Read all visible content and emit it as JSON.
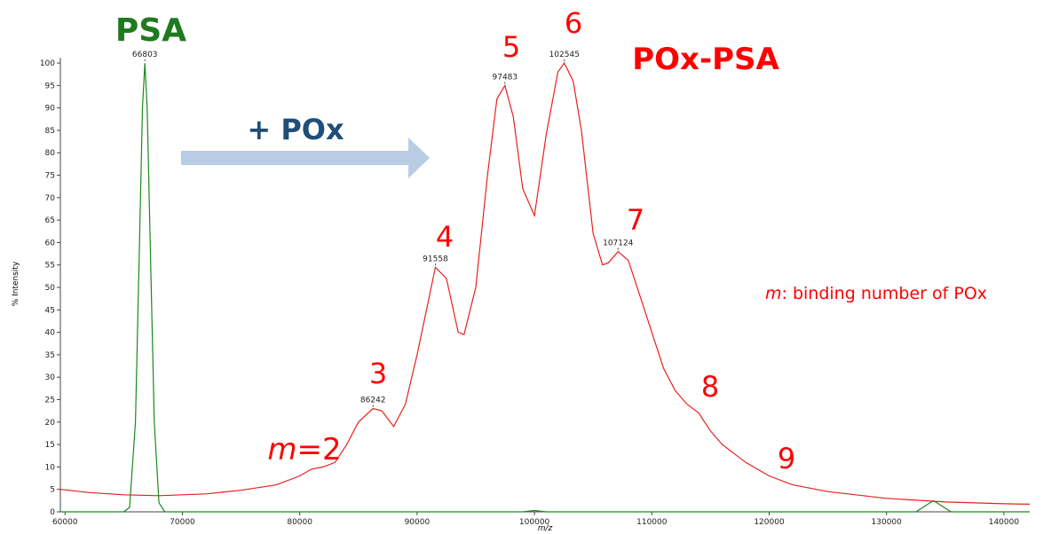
{
  "chart_data": {
    "type": "line",
    "x_label": "m/z",
    "y_label": "% Intensity",
    "xlim": [
      59600,
      142200
    ],
    "ylim": [
      0,
      101
    ],
    "xticks": [
      60000,
      70000,
      80000,
      90000,
      100000,
      110000,
      120000,
      130000,
      140000
    ],
    "yticks": [
      0,
      5,
      10,
      15,
      20,
      25,
      30,
      35,
      40,
      45,
      50,
      55,
      60,
      65,
      70,
      75,
      80,
      85,
      90,
      95,
      100
    ],
    "series": [
      {
        "name": "PSA",
        "color": "#1a8a1a",
        "x": [
          59600,
          65000,
          65500,
          66000,
          66300,
          66600,
          66803,
          67000,
          67300,
          67600,
          68000,
          68500,
          99000,
          100000,
          101000,
          132500,
          134000,
          135500,
          142200
        ],
        "values": [
          0,
          0,
          1,
          20,
          55,
          90,
          100,
          90,
          55,
          20,
          2,
          0,
          0,
          0.3,
          0,
          0,
          2.5,
          0,
          0
        ]
      },
      {
        "name": "POx-PSA",
        "color": "#e8201e",
        "x": [
          59600,
          62000,
          65000,
          68000,
          72000,
          75000,
          78000,
          80000,
          81000,
          82000,
          83000,
          84000,
          85000,
          86242,
          87000,
          88000,
          89000,
          90000,
          91558,
          92500,
          93500,
          94000,
          95000,
          96000,
          96800,
          97483,
          98200,
          99000,
          100000,
          101000,
          102000,
          102545,
          103300,
          104000,
          105000,
          105800,
          106300,
          107124,
          108000,
          109000,
          110000,
          111000,
          112000,
          113000,
          114000,
          115000,
          116000,
          117000,
          118000,
          120000,
          122000,
          125000,
          130000,
          135000,
          140000,
          142200
        ],
        "values": [
          5,
          4.3,
          3.8,
          3.6,
          4.0,
          4.8,
          6,
          8,
          9.5,
          10,
          11,
          15,
          20,
          23,
          22.5,
          19,
          24,
          35,
          54.5,
          52,
          40,
          39.5,
          50,
          75,
          92,
          95,
          88,
          72,
          66,
          84,
          98,
          100,
          96,
          85,
          62,
          55,
          55.5,
          58,
          56,
          48,
          40,
          32,
          27,
          24,
          22,
          18,
          15,
          13,
          11,
          8,
          6,
          4.5,
          3,
          2.2,
          1.8,
          1.7
        ]
      }
    ],
    "peak_labels": [
      66803,
      86242,
      91558,
      97483,
      102545,
      107124
    ],
    "annotations": [
      {
        "segments": [
          "PSA"
        ]
      },
      {
        "segments": [
          "+ POx"
        ]
      },
      {
        "segments": [
          "POx-PSA"
        ]
      },
      {
        "segments": [
          "m",
          "=2"
        ]
      },
      {
        "segments": [
          "3"
        ]
      },
      {
        "segments": [
          "4"
        ]
      },
      {
        "segments": [
          "5"
        ]
      },
      {
        "segments": [
          "6"
        ]
      },
      {
        "segments": [
          "7"
        ]
      },
      {
        "segments": [
          "8"
        ]
      },
      {
        "segments": [
          "9"
        ]
      },
      {
        "segments": [
          "m",
          ": binding number of POx"
        ]
      }
    ]
  }
}
